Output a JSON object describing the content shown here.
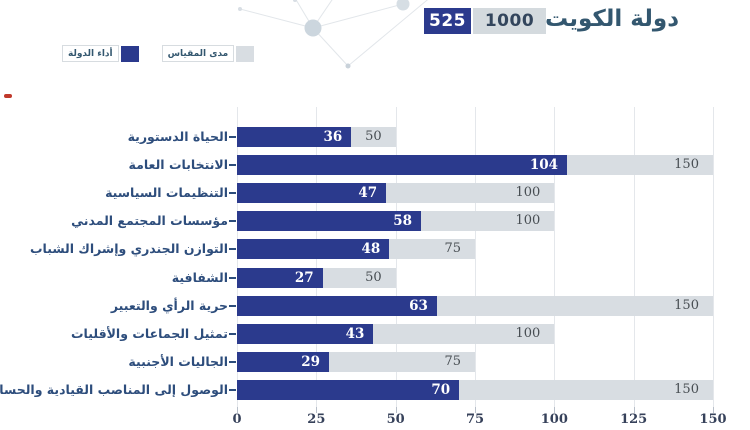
{
  "header": {
    "title": "دولة الكويت",
    "score": "525",
    "max_score": "1000"
  },
  "legend": {
    "items": [
      {
        "label": "أداء الدولة",
        "swatch": "navy"
      },
      {
        "label": "مدى المقياس",
        "swatch": "gray"
      }
    ]
  },
  "colors": {
    "navy": "#2b3a8d",
    "track_gray": "#d8dde2",
    "title_text": "#33576f",
    "category_text": "#2d4d7c",
    "axis_text": "#36415a",
    "total_text": "#474d52",
    "max_box_bg": "#d4dade",
    "max_box_text": "#33455c",
    "gridline": "#e4e7eb",
    "decoration": "#d3dce3",
    "red_mark": "#c0392b"
  },
  "chart_data": {
    "type": "bar",
    "orientation": "horizontal",
    "title": "دولة الكويت",
    "xlabel": "",
    "ylabel": "",
    "xlim": [
      0,
      150
    ],
    "xticks": [
      0,
      25,
      50,
      75,
      100,
      125,
      150
    ],
    "grid": true,
    "legend_position": "top-left",
    "categories": [
      "الحياة الدستورية",
      "الانتخابات العامة",
      "التنظيمات السياسية",
      "مؤسسات المجتمع المدني",
      "التوازن الجندري وإشراك الشباب",
      "الشفافية",
      "حرية الرأي والتعبير",
      "تمثيل الجماعات والأقليات",
      "الجاليات الأجنبية",
      "الوصول إلى المناصب القيادية والحساسية"
    ],
    "series": [
      {
        "name": "أداء الدولة",
        "values": [
          36,
          104,
          47,
          58,
          48,
          27,
          63,
          43,
          29,
          70
        ]
      },
      {
        "name": "مدى المقياس",
        "values": [
          50,
          150,
          100,
          100,
          75,
          50,
          150,
          100,
          75,
          150
        ]
      }
    ]
  }
}
